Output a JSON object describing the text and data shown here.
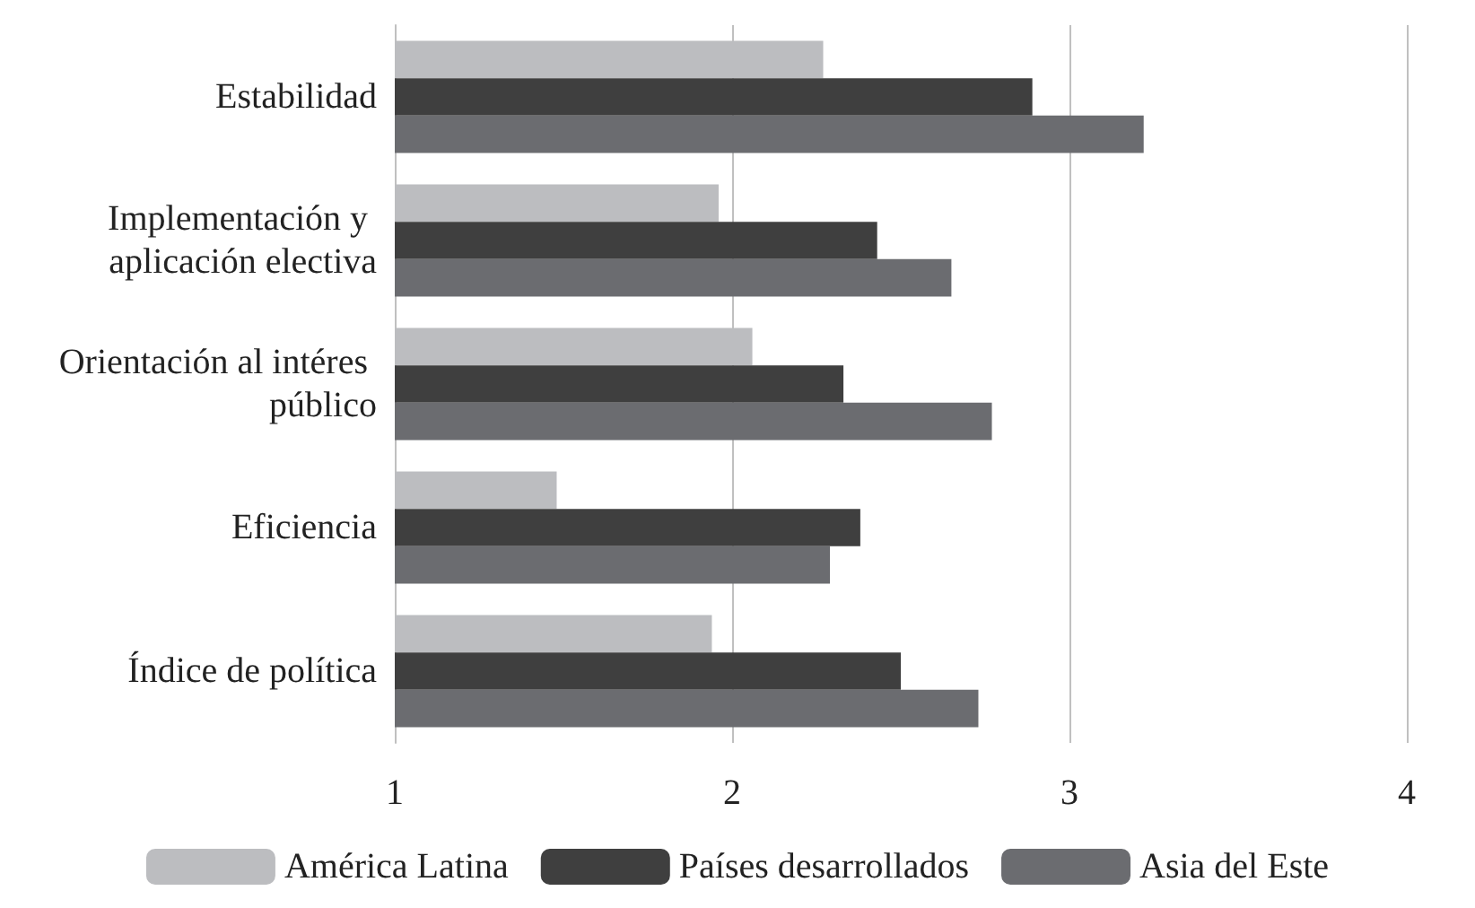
{
  "chart_data": {
    "type": "bar",
    "orientation": "horizontal",
    "categories": [
      "Estabilidad",
      "Implementación y aplicación electiva",
      "Orientación al intéres público",
      "Eficiencia",
      "Índice de política"
    ],
    "series": [
      {
        "name": "América Latina",
        "color": "#bcbdc0",
        "values": [
          2.27,
          1.96,
          2.06,
          1.48,
          1.94
        ]
      },
      {
        "name": "Países desarrollados",
        "color": "#3f3f3f",
        "values": [
          2.89,
          2.43,
          2.33,
          2.38,
          2.5
        ]
      },
      {
        "name": "Asia del Este",
        "color": "#6b6c70",
        "values": [
          3.22,
          2.65,
          2.77,
          2.29,
          2.73
        ]
      }
    ],
    "xlim": [
      1,
      4
    ],
    "xticks": [
      1,
      2,
      3,
      4
    ],
    "grid": "x",
    "legend": "bottom"
  }
}
